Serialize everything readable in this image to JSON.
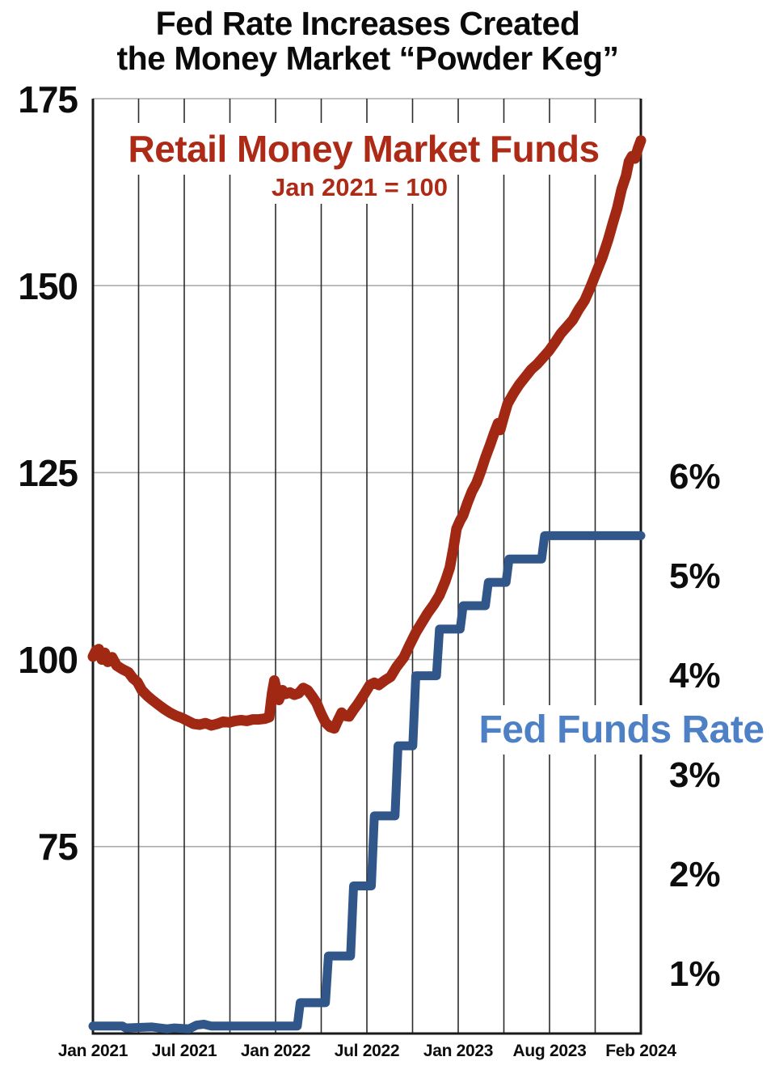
{
  "title": {
    "line1": "Fed Rate Increases Created",
    "line2": "the Money Market “Powder Keg”"
  },
  "chart_data": {
    "type": "line",
    "title": "Fed Rate Increases Created the Money Market “Powder Keg”",
    "x_axis": {
      "tick_labels": [
        "Jan 2021",
        "Jul 2021",
        "Jan 2022",
        "Jul 2022",
        "Jan 2023",
        "Aug 2023",
        "Feb 2024"
      ],
      "span_months": 37,
      "grid": "vertical lines every 3 months"
    },
    "left_axis": {
      "tick_labels": [
        "175",
        "150",
        "125",
        "100",
        "75"
      ],
      "range": [
        50,
        175
      ],
      "applies_to": "Retail Money Market Funds"
    },
    "right_axis": {
      "tick_labels": [
        "6%",
        "5%",
        "4%",
        "3%",
        "2%",
        "1%"
      ],
      "range_percent": [
        0,
        6
      ],
      "applies_to": "Fed Funds Rate"
    },
    "series": [
      {
        "name": "Retail Money Market Funds",
        "subtitle": "Jan 2021 = 100",
        "axis": "left",
        "color": "#a12813",
        "points": [
          [
            0,
            100.4
          ],
          [
            0.2,
            101.2
          ],
          [
            0.4,
            101.4
          ],
          [
            0.6,
            100.0
          ],
          [
            0.8,
            100.9
          ],
          [
            1.0,
            99.7
          ],
          [
            1.3,
            100.3
          ],
          [
            1.6,
            99.2
          ],
          [
            2.0,
            98.7
          ],
          [
            2.4,
            98.3
          ],
          [
            2.7,
            97.5
          ],
          [
            3.0,
            97.0
          ],
          [
            3.3,
            95.9
          ],
          [
            3.7,
            95.1
          ],
          [
            4.0,
            94.6
          ],
          [
            4.4,
            94.0
          ],
          [
            4.8,
            93.4
          ],
          [
            5.2,
            92.9
          ],
          [
            5.6,
            92.5
          ],
          [
            6.0,
            92.2
          ],
          [
            6.4,
            91.8
          ],
          [
            6.8,
            91.4
          ],
          [
            7.2,
            91.3
          ],
          [
            7.6,
            91.5
          ],
          [
            8.0,
            91.2
          ],
          [
            8.4,
            91.4
          ],
          [
            8.8,
            91.7
          ],
          [
            9.2,
            91.6
          ],
          [
            9.6,
            91.8
          ],
          [
            10.0,
            91.9
          ],
          [
            10.4,
            91.8
          ],
          [
            10.8,
            92.0
          ],
          [
            11.2,
            92.0
          ],
          [
            11.6,
            92.1
          ],
          [
            11.9,
            92.3
          ],
          [
            12.1,
            95.5
          ],
          [
            12.25,
            97.2
          ],
          [
            12.4,
            95.9
          ],
          [
            12.55,
            94.6
          ],
          [
            12.8,
            95.9
          ],
          [
            13.0,
            95.4
          ],
          [
            13.3,
            95.6
          ],
          [
            13.6,
            95.3
          ],
          [
            13.9,
            95.5
          ],
          [
            14.2,
            96.2
          ],
          [
            14.5,
            95.9
          ],
          [
            14.8,
            95.1
          ],
          [
            15.1,
            94.2
          ],
          [
            15.4,
            92.8
          ],
          [
            15.7,
            91.6
          ],
          [
            16.0,
            91.0
          ],
          [
            16.3,
            90.8
          ],
          [
            16.55,
            91.9
          ],
          [
            16.8,
            92.9
          ],
          [
            17.0,
            92.5
          ],
          [
            17.3,
            92.4
          ],
          [
            17.6,
            93.3
          ],
          [
            17.9,
            94.1
          ],
          [
            18.3,
            95.3
          ],
          [
            18.7,
            96.6
          ],
          [
            19.0,
            96.9
          ],
          [
            19.3,
            96.6
          ],
          [
            19.7,
            97.2
          ],
          [
            20.1,
            97.7
          ],
          [
            20.5,
            99.0
          ],
          [
            21.0,
            100.3
          ],
          [
            21.4,
            102.0
          ],
          [
            21.8,
            103.6
          ],
          [
            22.2,
            104.9
          ],
          [
            22.6,
            106.2
          ],
          [
            23.0,
            107.3
          ],
          [
            23.4,
            108.6
          ],
          [
            23.8,
            110.5
          ],
          [
            24.1,
            112.3
          ],
          [
            24.35,
            115.0
          ],
          [
            24.55,
            117.5
          ],
          [
            24.8,
            118.6
          ],
          [
            25.0,
            119.3
          ],
          [
            25.3,
            121.0
          ],
          [
            25.6,
            122.5
          ],
          [
            25.9,
            123.6
          ],
          [
            26.2,
            125.2
          ],
          [
            26.5,
            127.0
          ],
          [
            26.8,
            128.6
          ],
          [
            27.1,
            130.3
          ],
          [
            27.35,
            131.6
          ],
          [
            27.5,
            130.7
          ],
          [
            27.75,
            132.5
          ],
          [
            28.0,
            134.2
          ],
          [
            28.4,
            135.6
          ],
          [
            28.8,
            136.8
          ],
          [
            29.2,
            137.8
          ],
          [
            29.6,
            138.8
          ],
          [
            30.0,
            139.5
          ],
          [
            30.4,
            140.4
          ],
          [
            30.8,
            141.3
          ],
          [
            31.2,
            142.4
          ],
          [
            31.6,
            143.6
          ],
          [
            32.0,
            144.5
          ],
          [
            32.4,
            145.4
          ],
          [
            32.8,
            146.8
          ],
          [
            33.2,
            148.0
          ],
          [
            33.6,
            149.8
          ],
          [
            34.0,
            151.8
          ],
          [
            34.4,
            153.8
          ],
          [
            34.8,
            156.2
          ],
          [
            35.1,
            158.3
          ],
          [
            35.4,
            160.3
          ],
          [
            35.7,
            162.9
          ],
          [
            36.0,
            164.7
          ],
          [
            36.2,
            166.6
          ],
          [
            36.4,
            167.3
          ],
          [
            36.6,
            167.0
          ],
          [
            36.8,
            168.3
          ],
          [
            37.0,
            169.4
          ]
        ]
      },
      {
        "name": "Fed Funds Rate",
        "axis": "right",
        "color": "#30568a",
        "label_color": "#4d80c4",
        "points": [
          [
            0,
            0.08
          ],
          [
            2,
            0.08
          ],
          [
            2.2,
            0.06
          ],
          [
            4,
            0.07
          ],
          [
            5,
            0.05
          ],
          [
            5.5,
            0.06
          ],
          [
            6.5,
            0.05
          ],
          [
            7,
            0.09
          ],
          [
            7.5,
            0.1
          ],
          [
            8,
            0.08
          ],
          [
            9,
            0.08
          ],
          [
            13.8,
            0.08
          ],
          [
            14.0,
            0.33
          ],
          [
            15.7,
            0.33
          ],
          [
            15.9,
            0.83
          ],
          [
            17.4,
            0.83
          ],
          [
            17.6,
            1.58
          ],
          [
            18.8,
            1.58
          ],
          [
            19.0,
            2.33
          ],
          [
            20.4,
            2.33
          ],
          [
            20.6,
            3.08
          ],
          [
            21.6,
            3.08
          ],
          [
            21.8,
            3.83
          ],
          [
            23.2,
            3.83
          ],
          [
            23.4,
            4.33
          ],
          [
            24.8,
            4.33
          ],
          [
            25.0,
            4.58
          ],
          [
            26.5,
            4.58
          ],
          [
            26.7,
            4.83
          ],
          [
            27.9,
            4.83
          ],
          [
            28.1,
            5.08
          ],
          [
            30.3,
            5.08
          ],
          [
            30.5,
            5.33
          ],
          [
            37,
            5.33
          ]
        ]
      }
    ],
    "colors": {
      "vertical_grid": "#2b2b2b",
      "horizontal_grid": "#ababab",
      "axis_border": "#1a1a1a",
      "title_text": "#0b0b0b"
    },
    "legend_position": "labels drawn on chart"
  }
}
